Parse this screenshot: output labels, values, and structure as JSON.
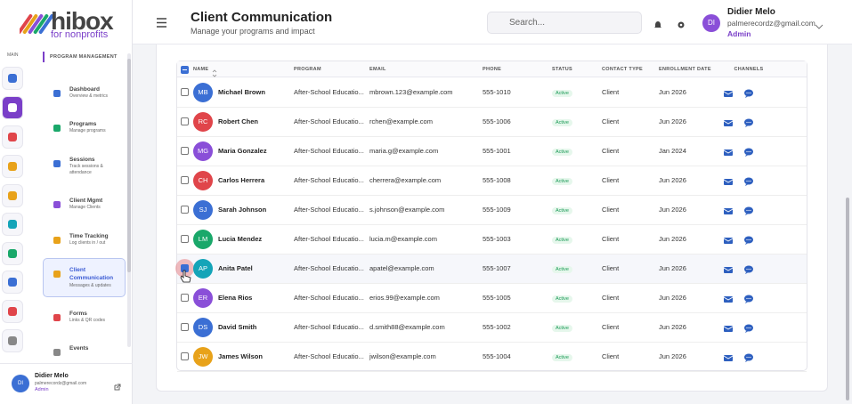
{
  "brand": {
    "name": "hibox",
    "tagline": "for nonprofits"
  },
  "rail": {
    "label": "MAIN"
  },
  "sidebar": {
    "section": "PROGRAM MANAGEMENT",
    "items": [
      {
        "title": "Dashboard",
        "subtitle": "Overview & metrics"
      },
      {
        "title": "Programs",
        "subtitle": "Manage programs"
      },
      {
        "title": "Sessions",
        "subtitle": "Track sessions & attendance"
      },
      {
        "title": "Client Mgmt",
        "subtitle": "Manage Clients"
      },
      {
        "title": "Time Tracking",
        "subtitle": "Log clients in / out"
      },
      {
        "title": "Client Communication",
        "subtitle": "Messages & updates"
      },
      {
        "title": "Forms",
        "subtitle": "Links & QR codes"
      },
      {
        "title": "Events",
        "subtitle": ""
      }
    ]
  },
  "footer_user": {
    "initials": "DI",
    "name": "Didier Melo",
    "email": "palmerecordz@gmail.com",
    "role": "Admin"
  },
  "header": {
    "title": "Client Communication",
    "subtitle": "Manage your programs and impact",
    "search_placeholder": "Search...",
    "user": {
      "initials": "DI",
      "name": "Didier Melo",
      "email": "palmerecordz@gmail.com",
      "role": "Admin"
    }
  },
  "table": {
    "columns": [
      "NAME",
      "PROGRAM",
      "EMAIL",
      "PHONE",
      "STATUS",
      "CONTACT TYPE",
      "ENROLLMENT DATE",
      "CHANNELS"
    ],
    "rows": [
      {
        "initials": "MB",
        "color": "#3b6fd4",
        "name": "Michael Brown",
        "program": "After-School Educatio...",
        "email": "mbrown.123@example.com",
        "phone": "555-1010",
        "status": "Active",
        "contact_type": "Client",
        "enrollment_date": "Jun 2026",
        "selected": false
      },
      {
        "initials": "RC",
        "color": "#e0454a",
        "name": "Robert Chen",
        "program": "After-School Educatio...",
        "email": "rchen@example.com",
        "phone": "555-1006",
        "status": "Active",
        "contact_type": "Client",
        "enrollment_date": "Jun 2026",
        "selected": false
      },
      {
        "initials": "MG",
        "color": "#8a4fd8",
        "name": "Maria Gonzalez",
        "program": "After-School Educatio...",
        "email": "maria.g@example.com",
        "phone": "555-1001",
        "status": "Active",
        "contact_type": "Client",
        "enrollment_date": "Jan 2024",
        "selected": false
      },
      {
        "initials": "CH",
        "color": "#e0454a",
        "name": "Carlos Herrera",
        "program": "After-School Educatio...",
        "email": "cherrera@example.com",
        "phone": "555-1008",
        "status": "Active",
        "contact_type": "Client",
        "enrollment_date": "Jun 2026",
        "selected": false
      },
      {
        "initials": "SJ",
        "color": "#3b6fd4",
        "name": "Sarah Johnson",
        "program": "After-School Educatio...",
        "email": "s.johnson@example.com",
        "phone": "555-1009",
        "status": "Active",
        "contact_type": "Client",
        "enrollment_date": "Jun 2026",
        "selected": false
      },
      {
        "initials": "LM",
        "color": "#1aa86a",
        "name": "Lucia Mendez",
        "program": "After-School Educatio...",
        "email": "lucia.m@example.com",
        "phone": "555-1003",
        "status": "Active",
        "contact_type": "Client",
        "enrollment_date": "Jun 2026",
        "selected": false
      },
      {
        "initials": "AP",
        "color": "#14a4b8",
        "name": "Anita Patel",
        "program": "After-School Educatio...",
        "email": "apatel@example.com",
        "phone": "555-1007",
        "status": "Active",
        "contact_type": "Client",
        "enrollment_date": "Jun 2026",
        "selected": true
      },
      {
        "initials": "ER",
        "color": "#8a4fd8",
        "name": "Elena Rios",
        "program": "After-School Educatio...",
        "email": "erios.99@example.com",
        "phone": "555-1005",
        "status": "Active",
        "contact_type": "Client",
        "enrollment_date": "Jun 2026",
        "selected": false
      },
      {
        "initials": "DS",
        "color": "#3b6fd4",
        "name": "David Smith",
        "program": "After-School Educatio...",
        "email": "d.smith88@example.com",
        "phone": "555-1002",
        "status": "Active",
        "contact_type": "Client",
        "enrollment_date": "Jun 2026",
        "selected": false
      },
      {
        "initials": "JW",
        "color": "#e8a21a",
        "name": "James Wilson",
        "program": "After-School Educatio...",
        "email": "jwilson@example.com",
        "phone": "555-1004",
        "status": "Active",
        "contact_type": "Client",
        "enrollment_date": "Jun 2026",
        "selected": false
      }
    ]
  }
}
